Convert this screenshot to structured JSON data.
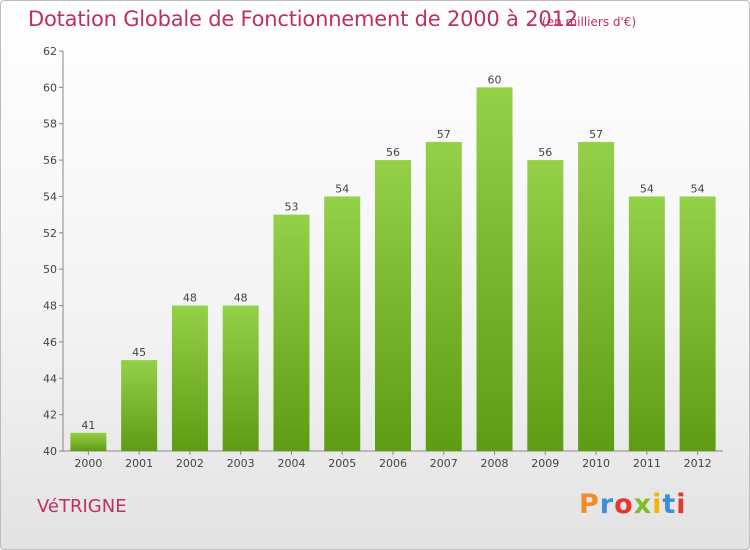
{
  "header": {
    "title": "Dotation Globale de Fonctionnement de 2000 à 2012",
    "unit_note": "(en milliers d'€)"
  },
  "footer": {
    "town": "VéTRIGNE",
    "brand": "Proxiti",
    "brand_colors": [
      "#f28c28",
      "#3a8fd6",
      "#e8362d",
      "#7cbf2a",
      "#f2b705",
      "#3a8fd6",
      "#e8362d"
    ]
  },
  "chart_data": {
    "type": "bar",
    "title": "Dotation Globale de Fonctionnement de 2000 à 2012",
    "subtitle": "(en milliers d'€)",
    "categories": [
      "2000",
      "2001",
      "2002",
      "2003",
      "2004",
      "2005",
      "2006",
      "2007",
      "2008",
      "2009",
      "2010",
      "2011",
      "2012"
    ],
    "values": [
      41,
      45,
      48,
      48,
      53,
      54,
      56,
      57,
      60,
      56,
      57,
      54,
      54
    ],
    "ylim": [
      40,
      62
    ],
    "yticks": [
      40,
      42,
      44,
      46,
      48,
      50,
      52,
      54,
      56,
      58,
      60,
      62
    ],
    "grid": false,
    "bar_color": "#7cbf2a",
    "bar_color_dark": "#5e9c14"
  }
}
